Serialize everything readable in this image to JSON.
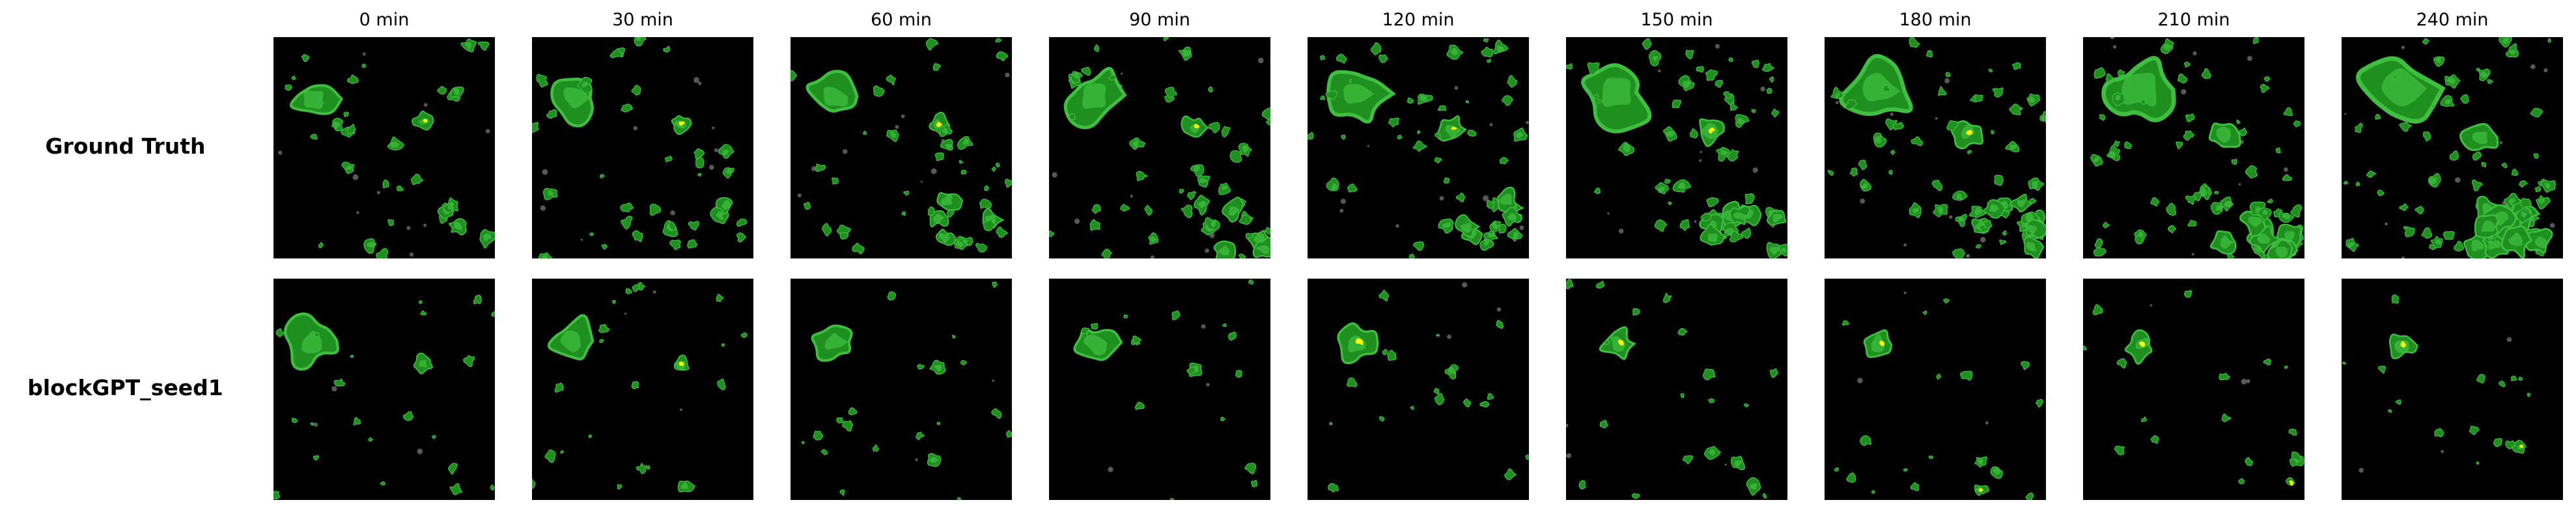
{
  "figure": {
    "columns": [
      "0 min",
      "30 min",
      "60 min",
      "90 min",
      "120 min",
      "150 min",
      "180 min",
      "210 min",
      "240 min"
    ],
    "rows": [
      {
        "label": "Ground Truth",
        "kind": "ground-truth"
      },
      {
        "label": "blockGPT_seed1",
        "kind": "prediction"
      }
    ],
    "colors": {
      "background": "#000000",
      "echo_low": "#1f8f1f",
      "echo_mid": "#3fbf3f",
      "echo_high": "#ffff00",
      "clutter": "#6e6e6e"
    }
  }
}
